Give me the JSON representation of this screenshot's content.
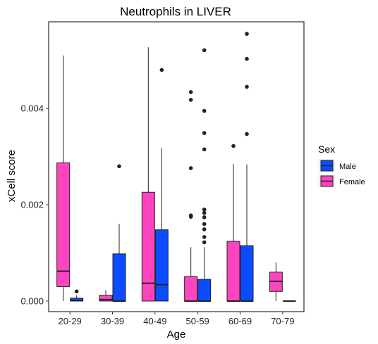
{
  "chart_data": {
    "type": "box",
    "title": "Neutrophils in LIVER",
    "xlabel": "Age",
    "ylabel": "xCell score",
    "categories": [
      "20-29",
      "30-39",
      "40-49",
      "50-59",
      "60-69",
      "70-79"
    ],
    "y_ticks": [
      0.0,
      0.002,
      0.004
    ],
    "y_tick_labels": [
      "0.000",
      "0.002",
      "0.004"
    ],
    "ylim": [
      -0.00022,
      0.0058
    ],
    "grid": false,
    "legend": {
      "title": "Sex",
      "position": "right",
      "entries": [
        {
          "label": "Male",
          "color": "#0b4cff"
        },
        {
          "label": "Female",
          "color": "#ff44c0"
        }
      ]
    },
    "series": [
      {
        "name": "Female",
        "color": "#ff44c0",
        "boxes": [
          {
            "category": "20-29",
            "min": 0.0,
            "q1": 0.0003,
            "median": 0.00062,
            "q3": 0.00287,
            "max": 0.0051,
            "outliers": []
          },
          {
            "category": "30-39",
            "min": 0.0,
            "q1": 0.0,
            "median": 3e-05,
            "q3": 0.00012,
            "max": 0.00022,
            "outliers": []
          },
          {
            "category": "40-49",
            "min": 0.0,
            "q1": 0.0,
            "median": 0.00037,
            "q3": 0.00226,
            "max": 0.00527,
            "outliers": []
          },
          {
            "category": "50-59",
            "min": 0.0,
            "q1": 0.0,
            "median": 0.0,
            "q3": 0.00051,
            "max": 0.00112,
            "outliers": [
              0.00175,
              0.00178,
              0.00276,
              0.00418,
              0.00434
            ]
          },
          {
            "category": "60-69",
            "min": 0.0,
            "q1": 0.0,
            "median": 0.0,
            "q3": 0.00124,
            "max": 0.00285,
            "outliers": [
              0.00322
            ]
          },
          {
            "category": "70-79",
            "min": 0.0,
            "q1": 0.0002,
            "median": 0.00041,
            "q3": 0.0006,
            "max": 0.0008,
            "outliers": []
          }
        ]
      },
      {
        "name": "Male",
        "color": "#0b4cff",
        "boxes": [
          {
            "category": "20-29",
            "min": 0.0,
            "q1": 0.0,
            "median": 1e-05,
            "q3": 6e-05,
            "max": 0.00012,
            "outliers": [
              0.0002
            ]
          },
          {
            "category": "30-39",
            "min": 0.0,
            "q1": 0.0,
            "median": 0.0,
            "q3": 0.00098,
            "max": 0.0016,
            "outliers": [
              0.0028
            ]
          },
          {
            "category": "40-49",
            "min": 0.0,
            "q1": 0.0,
            "median": 0.00034,
            "q3": 0.00148,
            "max": 0.00318,
            "outliers": [
              0.0048
            ]
          },
          {
            "category": "50-59",
            "min": 0.0,
            "q1": 0.0,
            "median": 0.0,
            "q3": 0.00045,
            "max": 0.00112,
            "outliers": [
              0.00122,
              0.00133,
              0.00149,
              0.0016,
              0.00174,
              0.00183,
              0.0019,
              0.00315,
              0.00349,
              0.00395,
              0.00521
            ]
          },
          {
            "category": "60-69",
            "min": 0.0,
            "q1": 0.0,
            "median": 0.0,
            "q3": 0.00115,
            "max": 0.00284,
            "outliers": [
              0.00347,
              0.00445,
              0.00503,
              0.00555
            ]
          },
          {
            "category": "70-79",
            "min": 0.0,
            "q1": 0.0,
            "median": 0.0,
            "q3": 0.0,
            "max": 0.0,
            "outliers": []
          }
        ]
      }
    ]
  }
}
